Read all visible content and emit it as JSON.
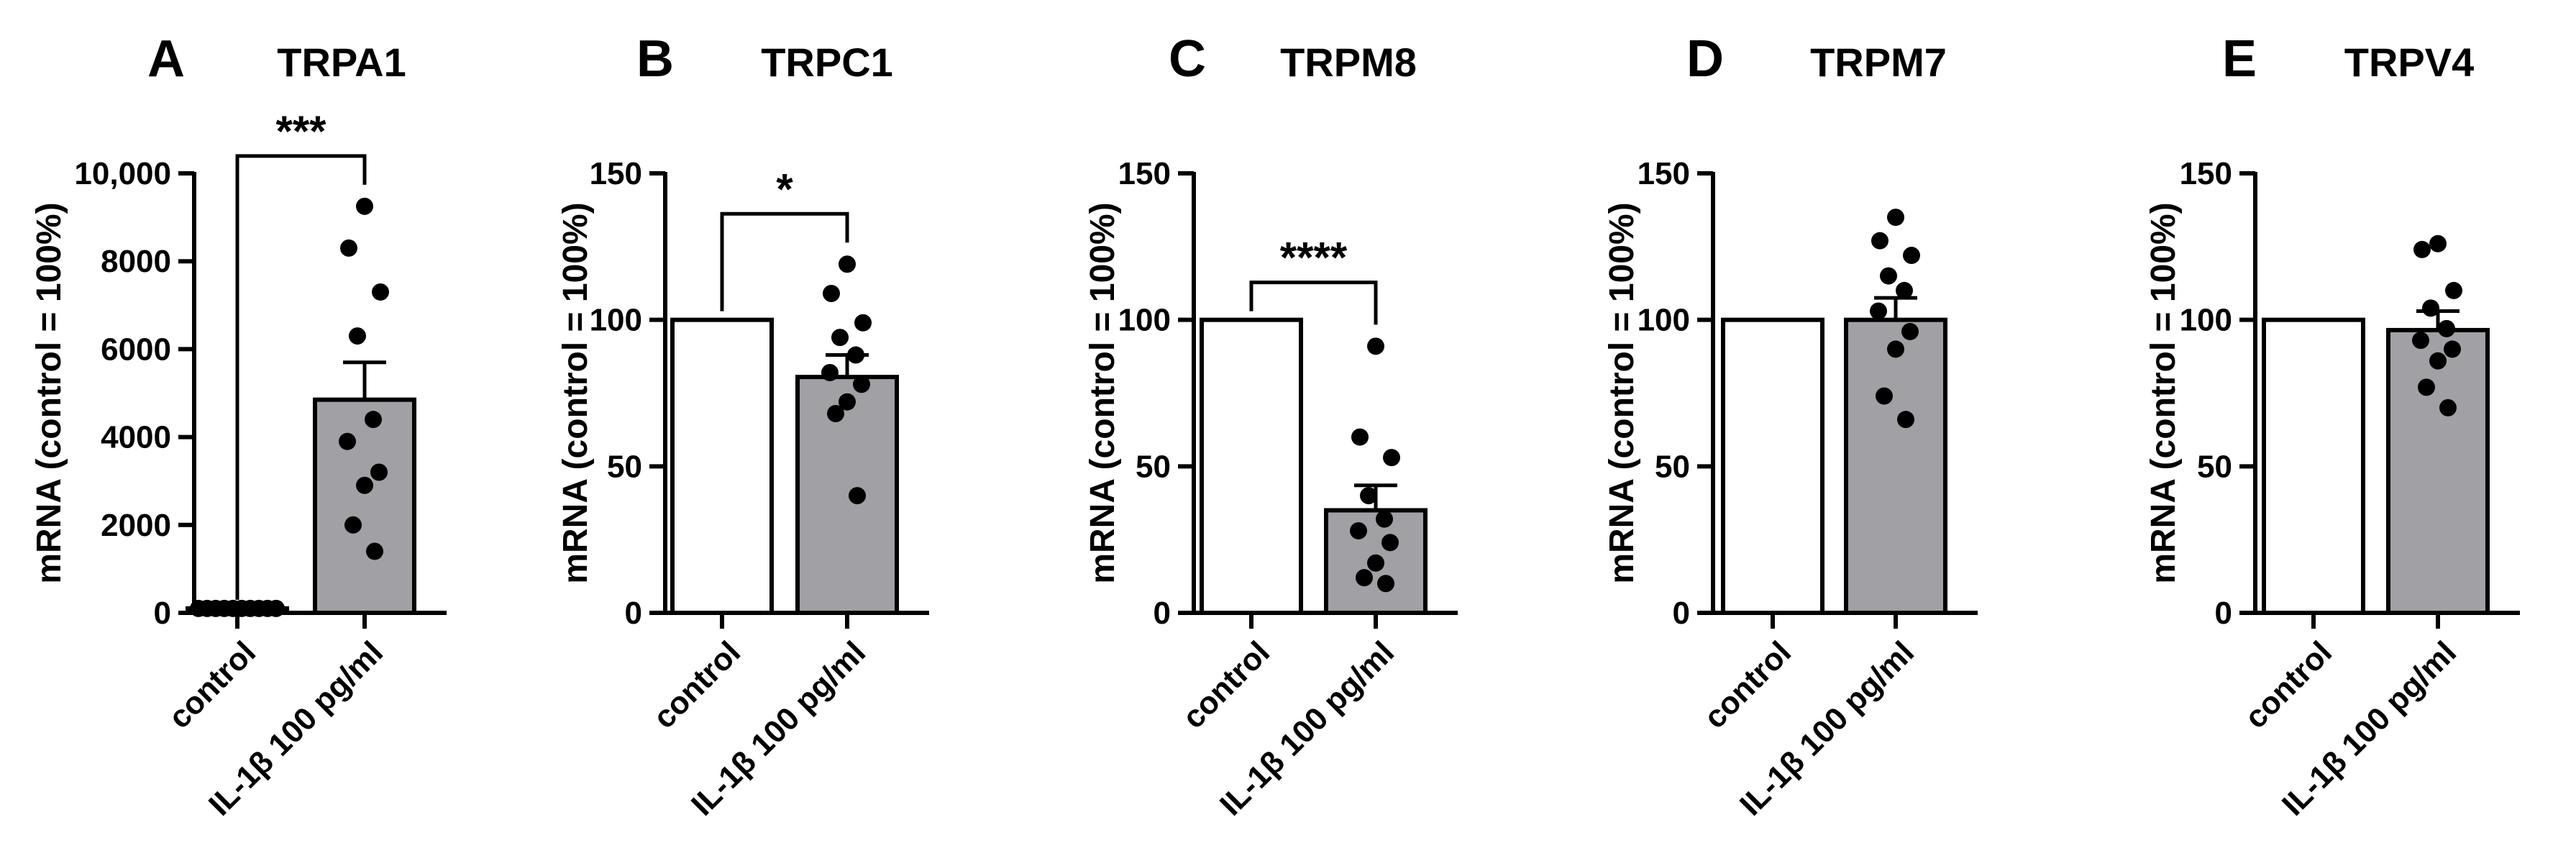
{
  "chart_data": [
    {
      "panel": "A",
      "type": "bar",
      "title": "TRPA1",
      "ylabel": "mRNA (control  = 100%)",
      "categories": [
        "control",
        "IL-1β 100 pg/ml"
      ],
      "ylim": [
        0,
        10000
      ],
      "yticks": [
        0,
        2000,
        4000,
        6000,
        8000,
        10000
      ],
      "ytick_labels": [
        "0",
        "2000",
        "4000",
        "6000",
        "8000",
        "10,000"
      ],
      "values": [
        100,
        4850
      ],
      "sem": [
        0,
        850
      ],
      "points": [
        [
          100,
          100,
          100,
          100,
          100,
          100,
          100,
          100,
          100,
          100
        ],
        [
          9250,
          8300,
          7300,
          6300,
          4400,
          3900,
          3200,
          2900,
          2000,
          1400
        ]
      ],
      "significance": "***",
      "bar_colors": [
        "#ffffff",
        "#a0a0a5"
      ]
    },
    {
      "panel": "B",
      "type": "bar",
      "title": "TRPC1",
      "ylabel": "mRNA (control  = 100%)",
      "categories": [
        "control",
        "IL-1β 100 pg/ml"
      ],
      "ylim": [
        0,
        150
      ],
      "yticks": [
        0,
        50,
        100,
        150
      ],
      "ytick_labels": [
        "0",
        "50",
        "100",
        "150"
      ],
      "values": [
        100,
        80.5
      ],
      "sem": [
        0,
        7.5
      ],
      "points": [
        [],
        [
          119,
          109,
          99,
          94,
          88,
          82,
          78,
          72,
          68,
          40
        ]
      ],
      "significance": "*",
      "bar_colors": [
        "#ffffff",
        "#a0a0a5"
      ]
    },
    {
      "panel": "C",
      "type": "bar",
      "title": "TRPM8",
      "ylabel": "mRNA (control  = 100%)",
      "categories": [
        "control",
        "IL-1β 100 pg/ml"
      ],
      "ylim": [
        0,
        150
      ],
      "yticks": [
        0,
        50,
        100,
        150
      ],
      "ytick_labels": [
        "0",
        "50",
        "100",
        "150"
      ],
      "values": [
        100,
        35
      ],
      "sem": [
        0,
        8.5
      ],
      "points": [
        [],
        [
          91,
          60,
          53,
          40,
          32,
          28,
          24,
          17,
          12,
          10
        ]
      ],
      "significance": "****",
      "bar_colors": [
        "#ffffff",
        "#a0a0a5"
      ]
    },
    {
      "panel": "D",
      "type": "bar",
      "title": "TRPM7",
      "ylabel": "mRNA (control  = 100%)",
      "categories": [
        "control",
        "IL-1β 100 pg/ml"
      ],
      "ylim": [
        0,
        150
      ],
      "yticks": [
        0,
        50,
        100,
        150
      ],
      "ytick_labels": [
        "0",
        "50",
        "100",
        "150"
      ],
      "values": [
        100,
        100
      ],
      "sem": [
        0,
        7.5
      ],
      "points": [
        [],
        [
          135,
          127,
          122,
          115,
          110,
          103,
          96,
          90,
          74,
          66
        ]
      ],
      "significance": "",
      "bar_colors": [
        "#ffffff",
        "#a0a0a5"
      ]
    },
    {
      "panel": "E",
      "type": "bar",
      "title": "TRPV4",
      "ylabel": "mRNA (control  = 100%)",
      "categories": [
        "control",
        "IL-1β 100 pg/ml"
      ],
      "ylim": [
        0,
        150
      ],
      "yticks": [
        0,
        50,
        100,
        150
      ],
      "ytick_labels": [
        "0",
        "50",
        "100",
        "150"
      ],
      "values": [
        100,
        96.5
      ],
      "sem": [
        0,
        6.5
      ],
      "points": [
        [],
        [
          126,
          124,
          110,
          104,
          97,
          93,
          90,
          86,
          77,
          70
        ]
      ],
      "significance": "",
      "bar_colors": [
        "#ffffff",
        "#a0a0a5"
      ]
    }
  ]
}
